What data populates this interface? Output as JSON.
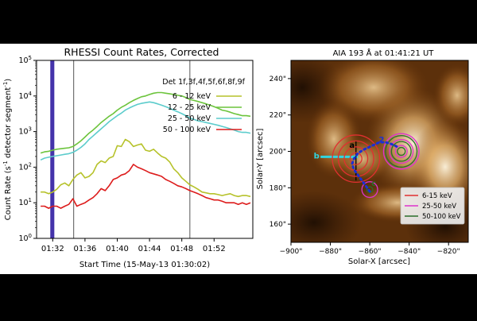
{
  "chart_data": [
    {
      "type": "line",
      "title": "RHESSI Count Rates, Corrected",
      "xlabel": "Start Time (15-May-13 01:30:02)",
      "ylabel": "Count Rate (s-1 detector segment-1)",
      "ylabel_parts": {
        "pre": "Count Rate (s",
        "sup1": "-1",
        "mid": " detector segment",
        "sup2": "-1",
        "post": ")"
      },
      "yscale": "log",
      "xlim": [
        30.0,
        56.8
      ],
      "ylim": [
        1,
        100000
      ],
      "x_ticks": [
        "01:32",
        "01:36",
        "01:40",
        "01:44",
        "01:48",
        "01:52"
      ],
      "x_tick_values": [
        32,
        36,
        40,
        44,
        48,
        52
      ],
      "y_ticks": [
        {
          "base": "10",
          "exp": "0"
        },
        {
          "base": "10",
          "exp": "1"
        },
        {
          "base": "10",
          "exp": "2"
        },
        {
          "base": "10",
          "exp": "3"
        },
        {
          "base": "10",
          "exp": "4"
        },
        {
          "base": "10",
          "exp": "5"
        }
      ],
      "y_tick_values": [
        1,
        10,
        100,
        1000,
        10000,
        100000
      ],
      "legend_title": "Det 1f,3f,4f,5f,6f,8f,9f",
      "legend_position": "top-right",
      "vertical_lines": [
        34.6,
        49.0
      ],
      "shaded_band": {
        "x": [
          31.7,
          32.2
        ],
        "color": "#4433aa"
      },
      "series": [
        {
          "name": "6 - 12 keV",
          "color": "#b6c22a",
          "x": [
            30.5,
            31,
            31.5,
            32,
            32.5,
            33,
            33.5,
            34,
            34.5,
            35,
            35.5,
            36,
            36.5,
            37,
            37.5,
            38,
            38.5,
            39,
            39.5,
            40,
            40.5,
            41,
            41.5,
            42,
            42.5,
            43,
            43.5,
            44,
            44.5,
            45,
            45.5,
            46,
            46.5,
            47,
            47.5,
            48,
            48.5,
            49,
            49.5,
            50,
            50.5,
            51,
            51.5,
            52,
            52.5,
            53,
            53.5,
            54,
            54.5,
            55,
            55.5,
            56,
            56.5
          ],
          "values": [
            20,
            20,
            18,
            20,
            24,
            32,
            36,
            30,
            45,
            60,
            70,
            50,
            55,
            70,
            120,
            150,
            135,
            180,
            200,
            400,
            380,
            600,
            520,
            380,
            420,
            450,
            300,
            280,
            320,
            250,
            200,
            180,
            140,
            90,
            70,
            50,
            40,
            32,
            28,
            24,
            20,
            19,
            18,
            18,
            17,
            16,
            17,
            18,
            16,
            15,
            16,
            16,
            15
          ]
        },
        {
          "name": "12 - 25 keV",
          "color": "#6cc43c",
          "x": [
            30.5,
            31,
            31.5,
            32,
            32.5,
            33,
            33.5,
            34,
            34.5,
            35,
            35.5,
            36,
            36.5,
            37,
            37.5,
            38,
            38.5,
            39,
            39.5,
            40,
            40.5,
            41,
            41.5,
            42,
            42.5,
            43,
            43.5,
            44,
            44.5,
            45,
            45.5,
            46,
            46.5,
            47,
            47.5,
            48,
            48.5,
            49,
            49.5,
            50,
            50.5,
            51,
            51.5,
            52,
            52.5,
            53,
            53.5,
            54,
            54.5,
            55,
            55.5,
            56,
            56.5
          ],
          "values": [
            250,
            270,
            280,
            300,
            320,
            330,
            340,
            350,
            380,
            450,
            550,
            700,
            900,
            1100,
            1400,
            1800,
            2200,
            2700,
            3200,
            4000,
            4800,
            5500,
            6500,
            7500,
            8500,
            9500,
            10000,
            11000,
            12000,
            12500,
            12500,
            12000,
            11500,
            11000,
            10500,
            10000,
            9000,
            8000,
            7500,
            7000,
            6500,
            6000,
            5500,
            5000,
            4500,
            4000,
            3800,
            3500,
            3200,
            3000,
            2800,
            2800,
            2700
          ]
        },
        {
          "name": "25 - 50 keV",
          "color": "#5ccccc",
          "x": [
            30.5,
            31,
            31.5,
            32,
            32.5,
            33,
            33.5,
            34,
            34.5,
            35,
            35.5,
            36,
            36.5,
            37,
            37.5,
            38,
            38.5,
            39,
            39.5,
            40,
            40.5,
            41,
            41.5,
            42,
            42.5,
            43,
            43.5,
            44,
            44.5,
            45,
            45.5,
            46,
            46.5,
            47,
            47.5,
            48,
            48.5,
            49,
            49.5,
            50,
            50.5,
            51,
            51.5,
            52,
            52.5,
            53,
            53.5,
            54,
            54.5,
            55,
            55.5,
            56,
            56.5
          ],
          "values": [
            160,
            180,
            190,
            200,
            210,
            220,
            230,
            240,
            260,
            300,
            360,
            450,
            600,
            750,
            950,
            1200,
            1500,
            1900,
            2300,
            2800,
            3300,
            4000,
            4600,
            5200,
            5800,
            6200,
            6500,
            6800,
            6500,
            6000,
            5500,
            5000,
            4500,
            4000,
            3600,
            3200,
            2800,
            2400,
            2200,
            2000,
            1900,
            1800,
            1700,
            1600,
            1500,
            1400,
            1300,
            1200,
            1100,
            1000,
            950,
            950,
            900
          ]
        },
        {
          "name": "50 - 100 keV",
          "color": "#dd1c1c",
          "x": [
            30.5,
            31,
            31.5,
            32,
            32.5,
            33,
            33.5,
            34,
            34.5,
            35,
            35.5,
            36,
            36.5,
            37,
            37.5,
            38,
            38.5,
            39,
            39.5,
            40,
            40.5,
            41,
            41.5,
            42,
            42.5,
            43,
            43.5,
            44,
            44.5,
            45,
            45.5,
            46,
            46.5,
            47,
            47.5,
            48,
            48.5,
            49,
            49.5,
            50,
            50.5,
            51,
            51.5,
            52,
            52.5,
            53,
            53.5,
            54,
            54.5,
            55,
            55.5,
            56,
            56.5
          ],
          "values": [
            8,
            8,
            7,
            8,
            8,
            7,
            8,
            9,
            13,
            8,
            9,
            10,
            12,
            14,
            18,
            25,
            22,
            30,
            45,
            50,
            60,
            65,
            80,
            120,
            100,
            90,
            80,
            70,
            65,
            60,
            55,
            45,
            40,
            35,
            30,
            28,
            25,
            22,
            20,
            18,
            16,
            14,
            13,
            12,
            12,
            11,
            10,
            10,
            10,
            9,
            10,
            9,
            10
          ]
        }
      ]
    },
    {
      "type": "scatter",
      "title": "AIA 193 Å at 01:41:21 UT",
      "xlabel": "Solar-X [arcsec]",
      "ylabel": "Solar-Y [arcsec]",
      "xlim": [
        -900,
        -810
      ],
      "ylim": [
        150,
        250
      ],
      "x_ticks": [
        "−900\"",
        "−880\"",
        "−860\"",
        "−840\"",
        "−820\""
      ],
      "x_tick_values": [
        -900,
        -880,
        -860,
        -840,
        -820
      ],
      "y_ticks": [
        "160\"",
        "180\"",
        "200\"",
        "220\"",
        "240\""
      ],
      "y_tick_values": [
        160,
        180,
        200,
        220,
        240
      ],
      "legend_position": "lower-right",
      "legend": [
        {
          "name": "6-15 keV",
          "color": "#e03030"
        },
        {
          "name": "25-50 keV",
          "color": "#dd33cc"
        },
        {
          "name": "50-100 keV",
          "color": "#2a6e2a"
        }
      ],
      "contour_sources": [
        {
          "name": "6-15 keV",
          "color": "#e03030",
          "center": [
            -867,
            196
          ],
          "radii": [
            3,
            6,
            9,
            12
          ]
        },
        {
          "name": "25-50 keV",
          "color": "#dd33cc",
          "center": [
            -844,
            200
          ],
          "radii": [
            3,
            6,
            9
          ]
        },
        {
          "name": "50-100 keV",
          "color": "#2a6e2a",
          "center": [
            -844,
            200
          ],
          "radii": [
            2,
            5,
            8
          ]
        },
        {
          "name": "25-50 keV",
          "color": "#dd33cc",
          "center": [
            -860,
            179
          ],
          "radii": [
            4
          ]
        },
        {
          "name": "50-100 keV",
          "color": "#2a6e2a",
          "center": [
            -860,
            179
          ],
          "radii": [
            1.5
          ]
        }
      ],
      "loop_path": {
        "color": "#1a2fd6",
        "x": [
          -860,
          -862,
          -864,
          -866,
          -868,
          -869,
          -868,
          -866,
          -863,
          -859,
          -855,
          -852,
          -849,
          -847,
          -845
        ],
        "y": [
          178,
          181,
          184,
          187,
          190,
          193,
          196,
          199,
          201,
          203,
          205,
          205,
          204,
          203,
          202
        ]
      },
      "cyan_bar": {
        "color": "#30d6e0",
        "x": [
          -885,
          -866
        ],
        "y": [
          197,
          197
        ]
      },
      "labels": [
        {
          "text": "a",
          "x": -869,
          "y": 202,
          "color": "#000000"
        },
        {
          "text": "b",
          "x": -887,
          "y": 196,
          "color": "#30d6e0"
        },
        {
          "text": "2",
          "x": -854,
          "y": 205,
          "color": "#1a2fd6"
        },
        {
          "text": "c",
          "x": -858,
          "y": 181,
          "color": "#2a6e2a"
        }
      ]
    }
  ]
}
